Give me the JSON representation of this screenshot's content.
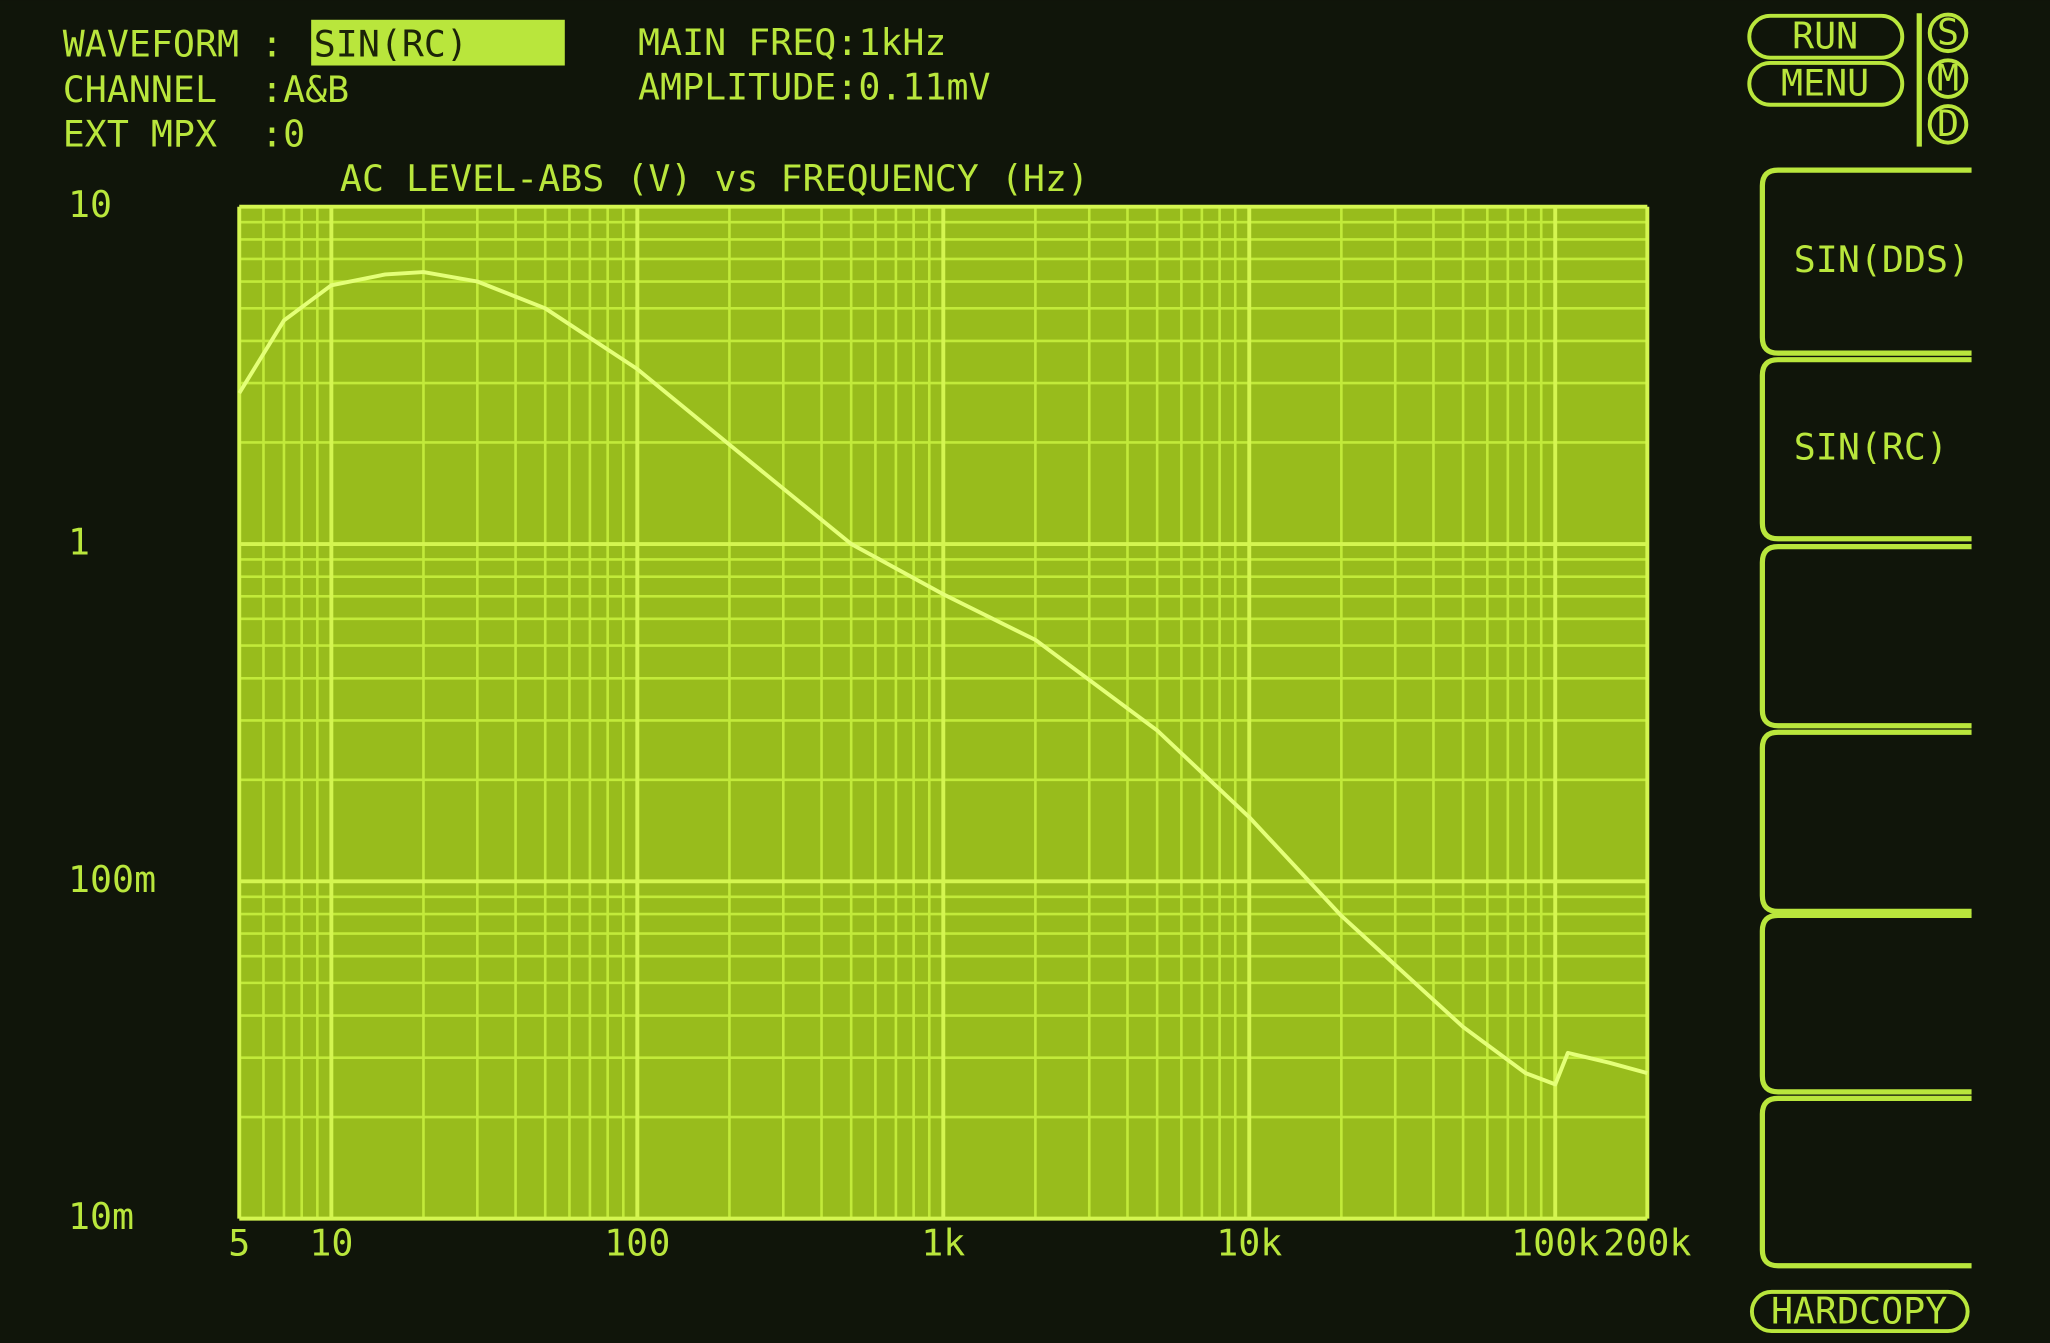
{
  "header": {
    "waveform_label": "WAVEFORM :",
    "waveform_value": "SIN(RC)",
    "channel": "CHANNEL  :A&B",
    "ext_mpx": "EXT MPX  :0",
    "main_freq": "MAIN FREQ:1kHz",
    "amplitude": "AMPLITUDE:0.11mV"
  },
  "side": {
    "run": "RUN",
    "menu": "MENU",
    "modes": [
      "S",
      "M",
      "D"
    ],
    "softkeys": [
      "SIN(DDS)",
      "SIN(RC)"
    ],
    "hardcopy": "HARDCOPY"
  },
  "chart_data": {
    "type": "line",
    "title": "AC LEVEL-ABS (V) vs FREQUENCY (Hz)",
    "x": [
      5,
      7,
      10,
      15,
      20,
      30,
      50,
      100,
      200,
      500,
      1000,
      2000,
      5000,
      10000,
      20000,
      50000,
      80000,
      100000,
      110000,
      150000,
      200000
    ],
    "values": [
      2.8,
      4.6,
      5.85,
      6.3,
      6.4,
      6.0,
      5.0,
      3.3,
      1.97,
      1.0,
      0.71,
      0.52,
      0.28,
      0.155,
      0.079,
      0.037,
      0.027,
      0.025,
      0.031,
      0.029,
      0.027
    ],
    "color": "#e4ff78",
    "xscale": "log",
    "yscale": "log",
    "xlim": [
      5,
      200000
    ],
    "ylim": [
      0.01,
      10
    ],
    "xticks": [
      5,
      10,
      100,
      {
        "value": 1000,
        "label": "1k"
      },
      {
        "value": 10000,
        "label": "10k"
      },
      {
        "value": 100000,
        "label": "100k"
      },
      {
        "value": 200000,
        "label": "200k"
      }
    ],
    "yticks": [
      {
        "value": 0.01,
        "label": "10m"
      },
      {
        "value": 0.1,
        "label": "100m"
      },
      1,
      10
    ],
    "grid": true,
    "minor_grid": true
  }
}
